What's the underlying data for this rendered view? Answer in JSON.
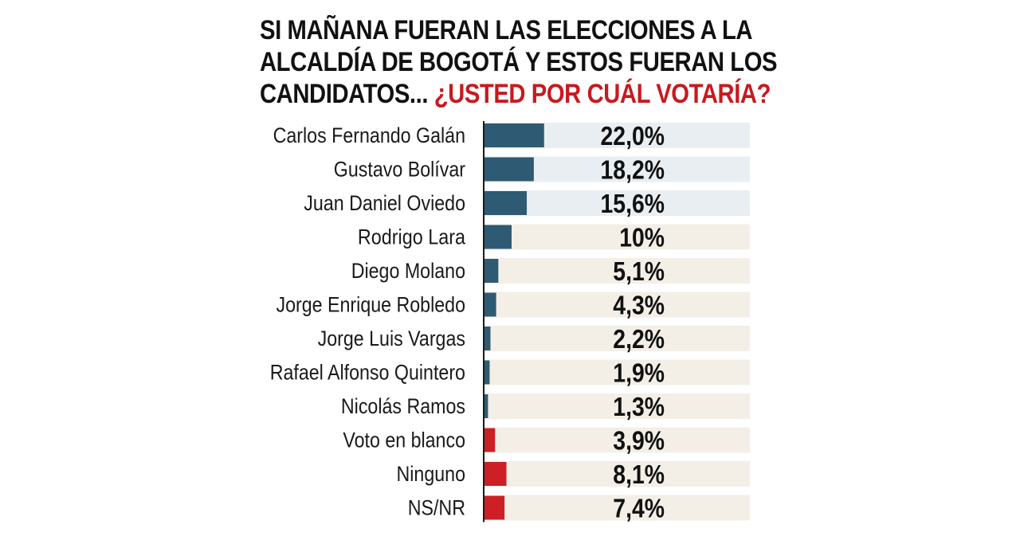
{
  "title": {
    "line1": "SI MAÑANA FUERAN LAS ELECCIONES A LA",
    "line2": "ALCALDÍA DE BOGOTÁ Y ESTOS FUERAN LOS",
    "line3_prefix": "CANDIDATOS...",
    "line3_accent": "¿USTED POR CUÁL VOTARÍA?"
  },
  "colors": {
    "candidate_bar": "#2e5b73",
    "other_bar": "#cc2026",
    "row_bg_top": "#e9eef2",
    "row_bg_rest": "#f3efe6",
    "accent_text": "#c8191f"
  },
  "chart_data": {
    "type": "bar",
    "orientation": "horizontal",
    "title": "SI MAÑANA FUERAN LAS ELECCIONES A LA ALCALDÍA DE BOGOTÁ Y ESTOS FUERAN LOS CANDIDATOS... ¿USTED POR CUÁL VOTARÍA?",
    "unit": "%",
    "categories": [
      "Carlos Fernando Galán",
      "Gustavo Bolívar",
      "Juan Daniel Oviedo",
      "Rodrigo Lara",
      "Diego Molano",
      "Jorge Enrique Robledo",
      "Jorge Luis Vargas",
      "Rafael Alfonso Quintero",
      "Nicolás Ramos",
      "Voto en blanco",
      "Ninguno",
      "NS/NR"
    ],
    "values": [
      22.0,
      18.2,
      15.6,
      10,
      5.1,
      4.3,
      2.2,
      1.9,
      1.3,
      3.9,
      8.1,
      7.4
    ],
    "value_labels": [
      "22,0%",
      "18,2%",
      "15,6%",
      "10%",
      "5,1%",
      "4,3%",
      "2,2%",
      "1,9%",
      "1,3%",
      "3,9%",
      "8,1%",
      "7,4%"
    ],
    "bar_group": [
      "candidate",
      "candidate",
      "candidate",
      "candidate",
      "candidate",
      "candidate",
      "candidate",
      "candidate",
      "candidate",
      "other",
      "other",
      "other"
    ],
    "highlight_top": 3,
    "grid": false,
    "legend": false
  }
}
